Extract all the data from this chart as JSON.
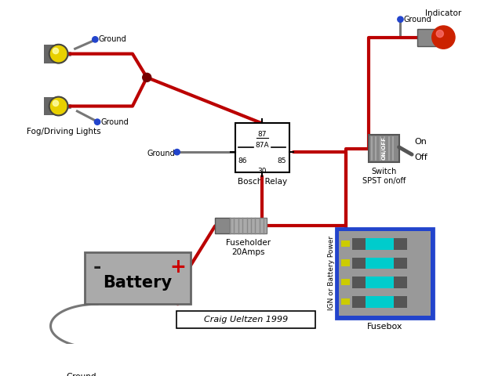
{
  "bg_color": "#ffffff",
  "wire_color": "#bb0000",
  "ground_wire_color": "#777777",
  "ground_dot_color": "#2244cc",
  "title": "Craig Ueltzen 1999",
  "battery_label": "Battery",
  "relay_label": "Bosch Relay",
  "fuse_label": "Fuseholder\n20Amps",
  "fusebox_label": "Fusebox",
  "switch_label": "Switch\nSPST on/off",
  "indicator_label": "Indicator",
  "fog_label": "Fog/Driving Lights",
  "ign_label": "IGN or Battery Power",
  "on_label": "On",
  "off_label": "Off",
  "ground_label": "Ground",
  "relay_pins": [
    "87",
    "87A",
    "86",
    "85",
    "30"
  ],
  "lw_main": 3.0,
  "lw_ground": 2.2,
  "lw_thin": 1.5
}
